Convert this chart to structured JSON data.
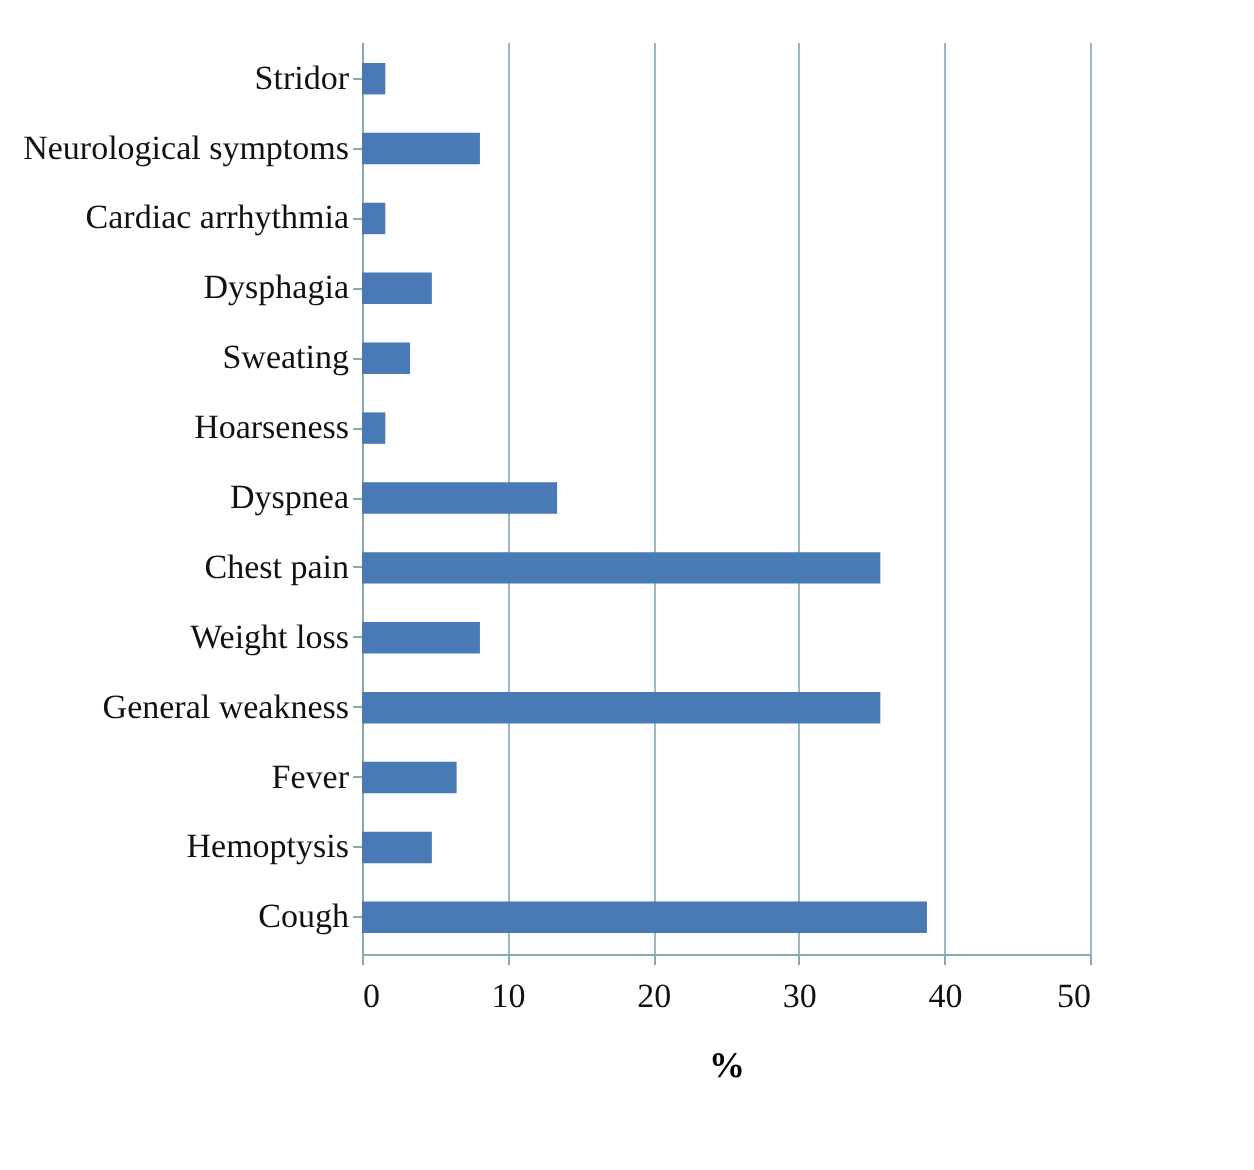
{
  "chart_data": {
    "type": "bar",
    "orientation": "horizontal",
    "xlabel": "%",
    "categories": [
      "Stridor",
      "Neurological symptoms",
      "Cardiac arrhythmia",
      "Dysphagia",
      "Sweating",
      "Hoarseness",
      "Dyspnea",
      "Chest pain",
      "Weight loss",
      "General weakness",
      "Fever",
      "Hemoptysis",
      "Cough"
    ],
    "values": [
      1.6,
      8.1,
      1.6,
      4.8,
      3.3,
      1.6,
      13.4,
      35.6,
      8.1,
      35.6,
      6.5,
      4.8,
      38.8
    ],
    "color": "#4a7ab5",
    "xlim": [
      0,
      50
    ],
    "xticks": [
      0,
      10,
      20,
      30,
      40,
      50
    ],
    "grid": "x"
  }
}
